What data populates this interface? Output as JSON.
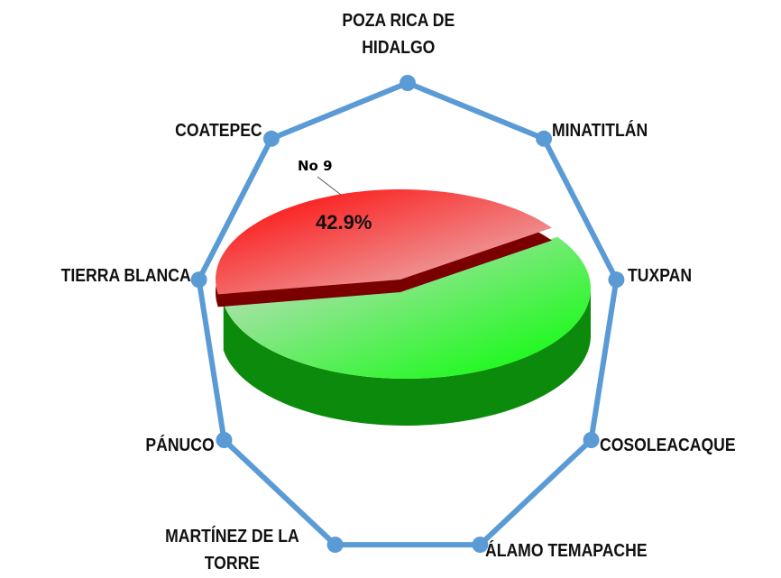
{
  "chart_data": [
    {
      "type": "radar",
      "categories": [
        "POZA RICA DE HIDALGO",
        "MINATITLÁN",
        "TUXPAN",
        "COSOLEACAQUE",
        "ÁLAMO  TEMAPACHE",
        "MARTÍNEZ DE LA TORRE",
        "PÁNUCO",
        "TIERRA  BLANCA",
        "COATEPEC"
      ],
      "values": [
        100,
        100,
        100,
        100,
        100,
        100,
        100,
        100,
        100
      ],
      "ylim": [
        0,
        100
      ],
      "color": "#5b9bd5"
    },
    {
      "type": "pie",
      "categories": [
        "No 9",
        null
      ],
      "values": [
        42.9,
        57.1
      ],
      "value_labels": [
        "42.9%",
        null
      ],
      "colors": [
        "#ff1a1a",
        "#19ff19"
      ]
    }
  ]
}
